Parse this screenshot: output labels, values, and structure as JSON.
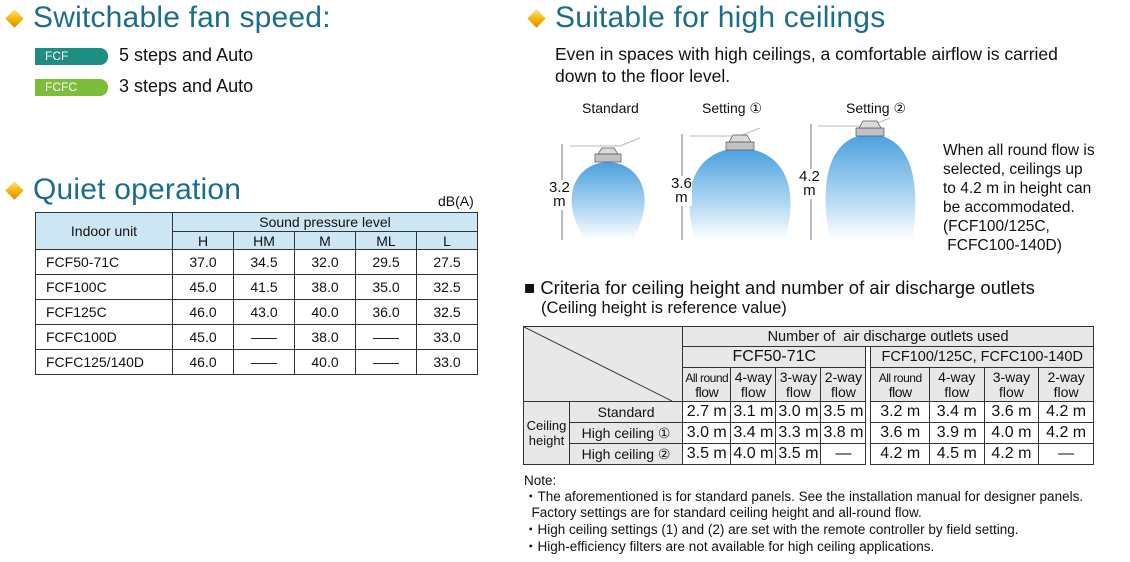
{
  "fan_speed": {
    "title": "Switchable fan speed:",
    "rows": [
      {
        "badge": "FCF",
        "color": "#1e8e83",
        "text": "5 steps and Auto"
      },
      {
        "badge": "FCFC",
        "color": "#7cbd3b",
        "text": "3 steps and Auto"
      }
    ]
  },
  "quiet": {
    "title": "Quiet operation",
    "unit": "dB(A)",
    "col_indoor": "Indoor unit",
    "col_group": "Sound pressure level",
    "levels": [
      "H",
      "HM",
      "M",
      "ML",
      "L"
    ],
    "rows": [
      {
        "unit": "FCF50-71C",
        "values": [
          "37.0",
          "34.5",
          "32.0",
          "29.5",
          "27.5"
        ]
      },
      {
        "unit": "FCF100C",
        "values": [
          "45.0",
          "41.5",
          "38.0",
          "35.0",
          "32.5"
        ]
      },
      {
        "unit": "FCF125C",
        "values": [
          "46.0",
          "43.0",
          "40.0",
          "36.0",
          "32.5"
        ]
      },
      {
        "unit": "FCFC100D",
        "values": [
          "45.0",
          "—",
          "38.0",
          "—",
          "33.0"
        ]
      },
      {
        "unit": "FCFC125/140D",
        "values": [
          "46.0",
          "—",
          "40.0",
          "—",
          "33.0"
        ]
      }
    ]
  },
  "high_ceiling": {
    "title": "Suitable for high ceilings",
    "desc_line1": "Even in spaces with high ceilings, a comfortable airflow is carried",
    "desc_line2": "down to the floor level.",
    "illustrations": [
      {
        "label": "Standard",
        "height": "3.2",
        "unit": "m"
      },
      {
        "label": "Setting ①",
        "height": "3.6",
        "unit": "m"
      },
      {
        "label": "Setting ②",
        "height": "4.2",
        "unit": "m"
      }
    ],
    "side_note": [
      "When all round flow is",
      "selected, ceilings up",
      "to 4.2 m in height can",
      "be accommodated.",
      "(FCF100/125C,",
      " FCFC100-140D)"
    ]
  },
  "criteria": {
    "title": "■ Criteria for ceiling height and number of air discharge outlets",
    "subtitle": "(Ceiling height is reference value)",
    "header_main": "Number of  air discharge outlets used",
    "group1": "FCF50-71C",
    "group2": "FCF100/125C, FCFC100-140D",
    "sub_cols": [
      {
        "l1": "All round",
        "l2": "flow"
      },
      {
        "l1": "4-way",
        "l2": "flow"
      },
      {
        "l1": "3-way",
        "l2": "flow"
      },
      {
        "l1": "2-way",
        "l2": "flow"
      }
    ],
    "row_group_line1": "Ceiling",
    "row_group_line2": "height",
    "rows": [
      {
        "label": "Standard",
        "g1": [
          "2.7 m",
          "3.1 m",
          "3.0 m",
          "3.5 m"
        ],
        "g2": [
          "3.2 m",
          "3.4 m",
          "3.6 m",
          "4.2 m"
        ]
      },
      {
        "label": "High ceiling ①",
        "g1": [
          "3.0 m",
          "3.4 m",
          "3.3 m",
          "3.8 m"
        ],
        "g2": [
          "3.6 m",
          "3.9 m",
          "4.0 m",
          "4.2 m"
        ]
      },
      {
        "label": "High ceiling ②",
        "g1": [
          "3.5 m",
          "4.0 m",
          "3.5 m",
          "—"
        ],
        "g2": [
          "4.2 m",
          "4.5 m",
          "4.2 m",
          "—"
        ]
      }
    ]
  },
  "notes": {
    "label": "Note:",
    "lines": [
      "・The aforementioned is for standard panels. See the installation manual for designer panels.",
      "  Factory settings are for standard ceiling height and all-round flow.",
      "・High ceiling settings (1) and (2) are set with the remote controller by field setting.",
      "・High-efficiency filters are not available for high ceiling applications."
    ]
  }
}
